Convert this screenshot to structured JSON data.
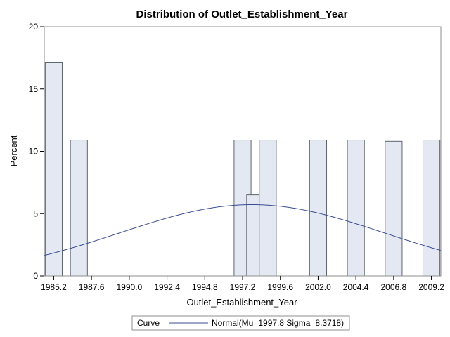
{
  "chart_data": {
    "type": "bar",
    "title": "Distribution of Outlet_Establishment_Year",
    "xlabel": "Outlet_Establishment_Year",
    "ylabel": "Percent",
    "xlim": [
      1984.6,
      2009.8
    ],
    "ylim": [
      0,
      20
    ],
    "bin_width": 1.2,
    "x_ticks": [
      "1985.2",
      "1987.6",
      "1990.0",
      "1992.4",
      "1994.8",
      "1997.2",
      "1999.6",
      "2002.0",
      "2004.4",
      "2006.8",
      "2009.2"
    ],
    "y_ticks": [
      "0",
      "5",
      "10",
      "15",
      "20"
    ],
    "bars": [
      {
        "x": 1985.2,
        "value": 17.1
      },
      {
        "x": 1986.8,
        "value": 10.9
      },
      {
        "x": 1997.2,
        "value": 10.9
      },
      {
        "x": 1998.0,
        "value": 6.5
      },
      {
        "x": 1998.8,
        "value": 10.9
      },
      {
        "x": 2002.0,
        "value": 10.9
      },
      {
        "x": 2004.4,
        "value": 10.9
      },
      {
        "x": 2006.8,
        "value": 10.8
      },
      {
        "x": 2009.2,
        "value": 10.9
      }
    ],
    "curve": {
      "type": "normal",
      "mu": 1997.8,
      "sigma": 8.3718
    },
    "grid": false,
    "bar_fill": "#e4e8f2",
    "bar_stroke": "#5c6470",
    "curve_color": "#3a4d8f",
    "legend": {
      "position": "bottom",
      "title": "Curve",
      "entries": [
        {
          "label": "Normal(Mu=1997.8 Sigma=8.3718)"
        }
      ]
    }
  }
}
